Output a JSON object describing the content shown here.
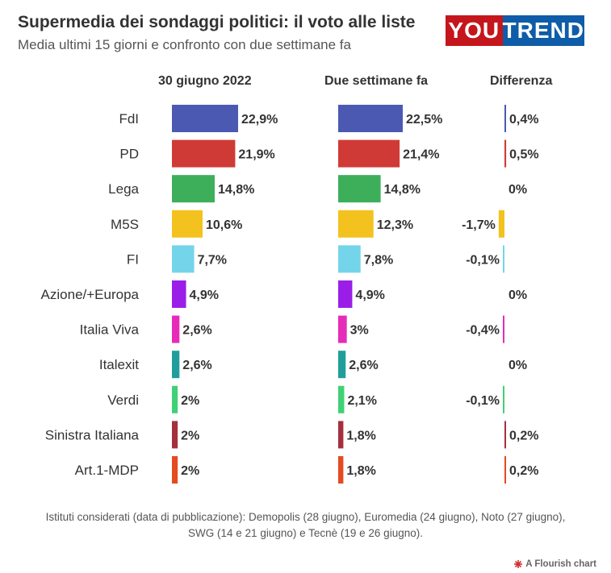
{
  "header": {
    "title": "Supermedia dei sondaggi politici: il voto alle liste",
    "subtitle": "Media ultimi 15 giorni e confronto con due settimane fa",
    "logo_part1": "YOU",
    "logo_part2": "TREND"
  },
  "columns": {
    "current": "30 giugno 2022",
    "previous": "Due settimane fa",
    "difference": "Differenza"
  },
  "chart_data": {
    "type": "bar",
    "categories": [
      "FdI",
      "PD",
      "Lega",
      "M5S",
      "FI",
      "Azione/+Europa",
      "Italia Viva",
      "Italexit",
      "Verdi",
      "Sinistra Italiana",
      "Art.1-MDP"
    ],
    "series": [
      {
        "name": "30 giugno 2022",
        "values": [
          22.9,
          21.9,
          14.8,
          10.6,
          7.7,
          4.9,
          2.6,
          2.6,
          2,
          2,
          2
        ],
        "labels": [
          "22,9%",
          "21,9%",
          "14,8%",
          "10,6%",
          "7,7%",
          "4,9%",
          "2,6%",
          "2,6%",
          "2%",
          "2%",
          "2%"
        ]
      },
      {
        "name": "Due settimane fa",
        "values": [
          22.5,
          21.4,
          14.8,
          12.3,
          7.8,
          4.9,
          3,
          2.6,
          2.1,
          1.8,
          1.8
        ],
        "labels": [
          "22,5%",
          "21,4%",
          "14,8%",
          "12,3%",
          "7,8%",
          "4,9%",
          "3%",
          "2,6%",
          "2,1%",
          "1,8%",
          "1,8%"
        ]
      },
      {
        "name": "Differenza",
        "values": [
          0.4,
          0.5,
          0,
          -1.7,
          -0.1,
          0,
          -0.4,
          0,
          -0.1,
          0.2,
          0.2
        ],
        "labels": [
          "0,4%",
          "0,5%",
          "0%",
          "-1,7%",
          "-0,1%",
          "0%",
          "-0,4%",
          "0%",
          "-0,1%",
          "0,2%",
          "0,2%"
        ]
      }
    ],
    "colors": [
      "#4b59b3",
      "#d03a36",
      "#3daf5a",
      "#f4c21f",
      "#74d5ea",
      "#9b1ee8",
      "#e62bb8",
      "#1f9e9b",
      "#3fd175",
      "#a5303d",
      "#e44b20"
    ],
    "grid": false,
    "legend": "none"
  },
  "footer": {
    "note_line1": "Istituti considerati (data di pubblicazione): Demopolis (28 giugno), Euromedia (24 giugno), Noto (27 giugno),",
    "note_line2": "SWG (14 e 21 giugno) e Tecnè (19 e 26 giugno).",
    "credit": "A Flourish chart",
    "credit_icon": "flourish-icon"
  }
}
